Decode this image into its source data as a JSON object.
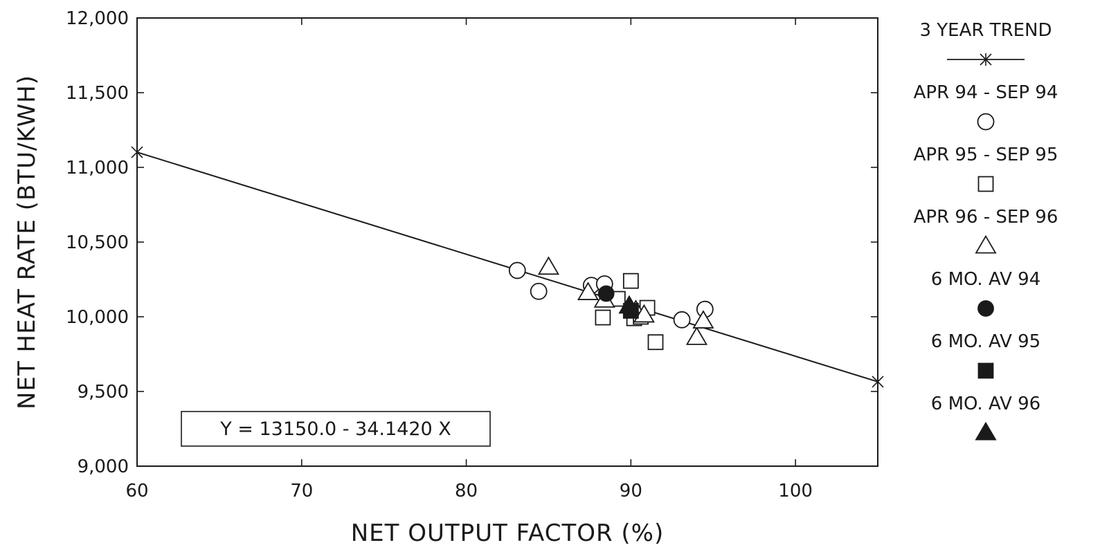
{
  "chart_data": {
    "type": "scatter",
    "title": "",
    "xlabel": "NET OUTPUT FACTOR (%)",
    "ylabel": "NET HEAT RATE (BTU/KWH)",
    "xlim": [
      60,
      105
    ],
    "ylim": [
      9000,
      12000
    ],
    "x_ticks": [
      {
        "value": 60,
        "label": "60"
      },
      {
        "value": 70,
        "label": "70"
      },
      {
        "value": 80,
        "label": "80"
      },
      {
        "value": 90,
        "label": "90"
      },
      {
        "value": 100,
        "label": "100"
      }
    ],
    "y_ticks": [
      {
        "value": 9000,
        "label": "9,000"
      },
      {
        "value": 9500,
        "label": "9,500"
      },
      {
        "value": 10000,
        "label": "10,000"
      },
      {
        "value": 10500,
        "label": "10,500"
      },
      {
        "value": 11000,
        "label": "11,000"
      },
      {
        "value": 11500,
        "label": "11,500"
      },
      {
        "value": 12000,
        "label": "12,000"
      }
    ],
    "grid": false,
    "legend_position": "right",
    "equation_label": "Y = 13150.0 - 34.1420 X",
    "series": [
      {
        "name": "3 YEAR TREND",
        "marker": "asterisk-line",
        "x": [
          60,
          105
        ],
        "y": [
          11101.5,
          9565.1
        ]
      },
      {
        "name": "APR 94 - SEP 94",
        "marker": "circle-open",
        "x": [
          83.1,
          84.4,
          87.6,
          88.4,
          93.1,
          94.5
        ],
        "y": [
          10310,
          10170,
          10210,
          10220,
          9980,
          10050
        ]
      },
      {
        "name": "APR 95 - SEP 95",
        "marker": "square-open",
        "x": [
          88.3,
          89.2,
          90.0,
          90.2,
          90.6,
          91.0,
          91.5
        ],
        "y": [
          9995,
          10120,
          10240,
          9990,
          10000,
          10060,
          9830
        ]
      },
      {
        "name": "APR 96 - SEP 96",
        "marker": "triangle-open",
        "x": [
          85.0,
          87.4,
          88.4,
          90.3,
          90.8,
          94.0,
          94.4
        ],
        "y": [
          10330,
          10160,
          10110,
          10040,
          10010,
          9860,
          9970
        ]
      },
      {
        "name": "6 MO. AV 94",
        "marker": "circle-filled",
        "x": [
          88.5
        ],
        "y": [
          10155
        ]
      },
      {
        "name": "6 MO. AV 95",
        "marker": "square-filled",
        "x": [
          90.0
        ],
        "y": [
          10040
        ]
      },
      {
        "name": "6 MO. AV 96",
        "marker": "triangle-filled",
        "x": [
          89.9
        ],
        "y": [
          10070
        ]
      }
    ]
  }
}
